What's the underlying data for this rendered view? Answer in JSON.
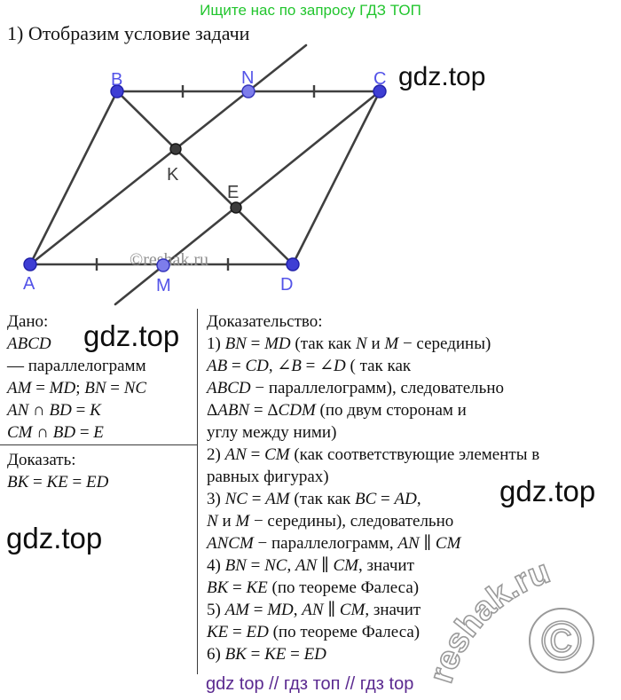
{
  "header": {
    "promo": "Ищите нас по запросу ГДЗ ТОП"
  },
  "step_title": "1) Отобразим условие задачи",
  "watermarks": {
    "gdz": "gdz.top",
    "reshak_inline": "©reshak.ru",
    "reshak_arc": "reshak.ru",
    "copyright_glyph": "©"
  },
  "diagram": {
    "points": {
      "A": "A",
      "B": "B",
      "C": "C",
      "D": "D",
      "N": "N",
      "M": "M",
      "K": "K",
      "E": "E"
    }
  },
  "given": {
    "title": "Дано:",
    "lines": [
      "ABCD",
      "— параллелограмм",
      "AM = MD; BN = NC",
      "AN ∩ BD = K",
      "CM ∩ BD = E"
    ]
  },
  "prove": {
    "title": "Доказать:",
    "line": "BK = KE = ED"
  },
  "proof": {
    "title": "Доказательство:",
    "lines": [
      "1) BN = MD (так как N и M − середины)",
      "AB = CD, ∠B = ∠D ( так как",
      "ABCD − параллелограмм), следовательно",
      "ΔABN = ΔCDM (по двум сторонам и",
      "углу между ними)",
      "2) AN = CM (как соответствующие элементы в",
      "равных фигурах)",
      "3) NC = AM (так как BC = AD,",
      "N и M − середины), следовательно",
      "ANCM − параллелограмм, AN ∥ CM",
      "4) BN = NC, AN ∥ CM, значит",
      "BK = KE (по теореме Фалеса)",
      "5) AM = MD, AN ∥ CM, значит",
      "KE = ED (по теореме Фалеса)",
      "6) BK = KE = ED"
    ]
  },
  "footer": {
    "text": "gdz top  //  гдз топ  //  гдз top"
  },
  "colors": {
    "accent_green": "#22c52e",
    "footer_purple": "#5b2a90",
    "vertex_blue": "#3e3ed4",
    "midpoint_blue": "#7d7deb",
    "label_blue": "#5353e8",
    "dark_point": "#3c3c3c",
    "line_gray": "#3f3f3f"
  }
}
